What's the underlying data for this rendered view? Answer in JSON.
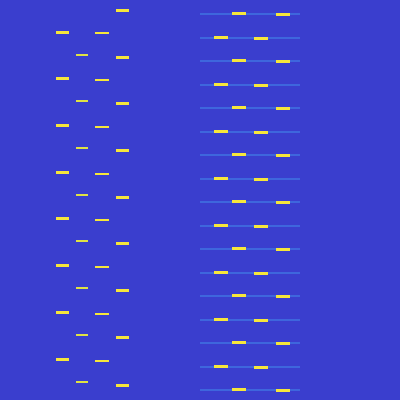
{
  "chart_data": {
    "type": "heatmap",
    "tick_labels": false,
    "xlim": [
      0,
      400
    ],
    "ylim": [
      400,
      0
    ],
    "zlim": [
      0,
      1
    ],
    "background": 0.15,
    "bursts": [
      {
        "x": 56,
        "width": 13,
        "height": 3,
        "value": 1.0,
        "rows": [
          31,
          77,
          124,
          171,
          217,
          264,
          311,
          358
        ]
      },
      {
        "x": 76,
        "width": 12,
        "height": 2,
        "value": 0.95,
        "rows": [
          54,
          100,
          147,
          194,
          240,
          287,
          334,
          381
        ]
      },
      {
        "x": 95,
        "width": 14,
        "height": 2,
        "value": 1.0,
        "rows": [
          32,
          79,
          126,
          173,
          219,
          266,
          313,
          360
        ]
      },
      {
        "x": 116,
        "width": 13,
        "height": 3,
        "value": 1.0,
        "rows": [
          9,
          56,
          102,
          149,
          196,
          242,
          289,
          336,
          384
        ]
      },
      {
        "x": 200,
        "width": 100,
        "height": 2,
        "value": 0.32,
        "rows": [
          13,
          37,
          60,
          84,
          107,
          131,
          154,
          178,
          201,
          225,
          248,
          272,
          295,
          319,
          342,
          366,
          389
        ]
      },
      {
        "x": 214,
        "width": 14,
        "height": 3,
        "value": 1.0,
        "rows": [
          36,
          83,
          130,
          177,
          224,
          271,
          318,
          365
        ]
      },
      {
        "x": 232,
        "width": 14,
        "height": 3,
        "value": 1.0,
        "rows": [
          12,
          59,
          106,
          153,
          200,
          247,
          294,
          341,
          388
        ]
      },
      {
        "x": 254,
        "width": 14,
        "height": 3,
        "value": 1.0,
        "rows": [
          37,
          84,
          131,
          178,
          225,
          272,
          319,
          366
        ]
      },
      {
        "x": 276,
        "width": 14,
        "height": 3,
        "value": 1.0,
        "rows": [
          13,
          60,
          107,
          154,
          201,
          248,
          295,
          342,
          389
        ]
      }
    ]
  }
}
